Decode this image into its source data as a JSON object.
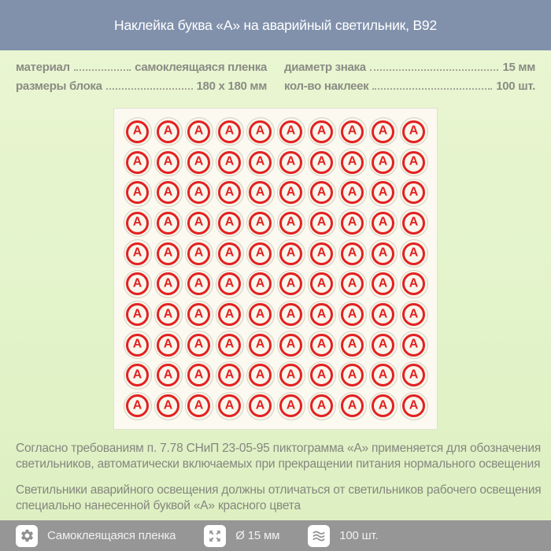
{
  "header": {
    "title": "Наклейка буква «А» на аварийный светильник, В92"
  },
  "specs": {
    "left": [
      {
        "label": "материал",
        "value": "самоклеящаяся пленка"
      },
      {
        "label": "размеры блока",
        "value": "180 x 180 мм"
      }
    ],
    "right": [
      {
        "label": "диаметр знака",
        "value": "15 мм"
      },
      {
        "label": "кол-во наклеек",
        "value": "100 шт."
      }
    ]
  },
  "sheet": {
    "letter": "А",
    "rows": 10,
    "cols": 10,
    "count": 100
  },
  "paragraphs": {
    "p1": "Согласно требованиям п. 7.78 СНиП 23-05-95 пиктограмма «А» применяется для обозначения светильников, автоматически включаемых при прекращении питания нормального освещения",
    "p2": "Светильники аварийного освещения должны отличаться от светильников рабочего освещения специально нанесенной буквой «А» красного цвета"
  },
  "footer": {
    "items": [
      {
        "icon": "gear-icon",
        "label": "Самоклеящаяся пленка"
      },
      {
        "icon": "expand-arrows-icon",
        "label": "Ø 15 мм"
      },
      {
        "icon": "layers-icon",
        "label": "100 шт."
      }
    ]
  },
  "colors": {
    "header_bg": "#8191ac",
    "footer_bg": "#969696",
    "accent_red": "#e32121",
    "page_bg_green": "#e3f3ca",
    "sheet_bg": "#fbf9f0",
    "text_gray": "#8b8c84"
  }
}
